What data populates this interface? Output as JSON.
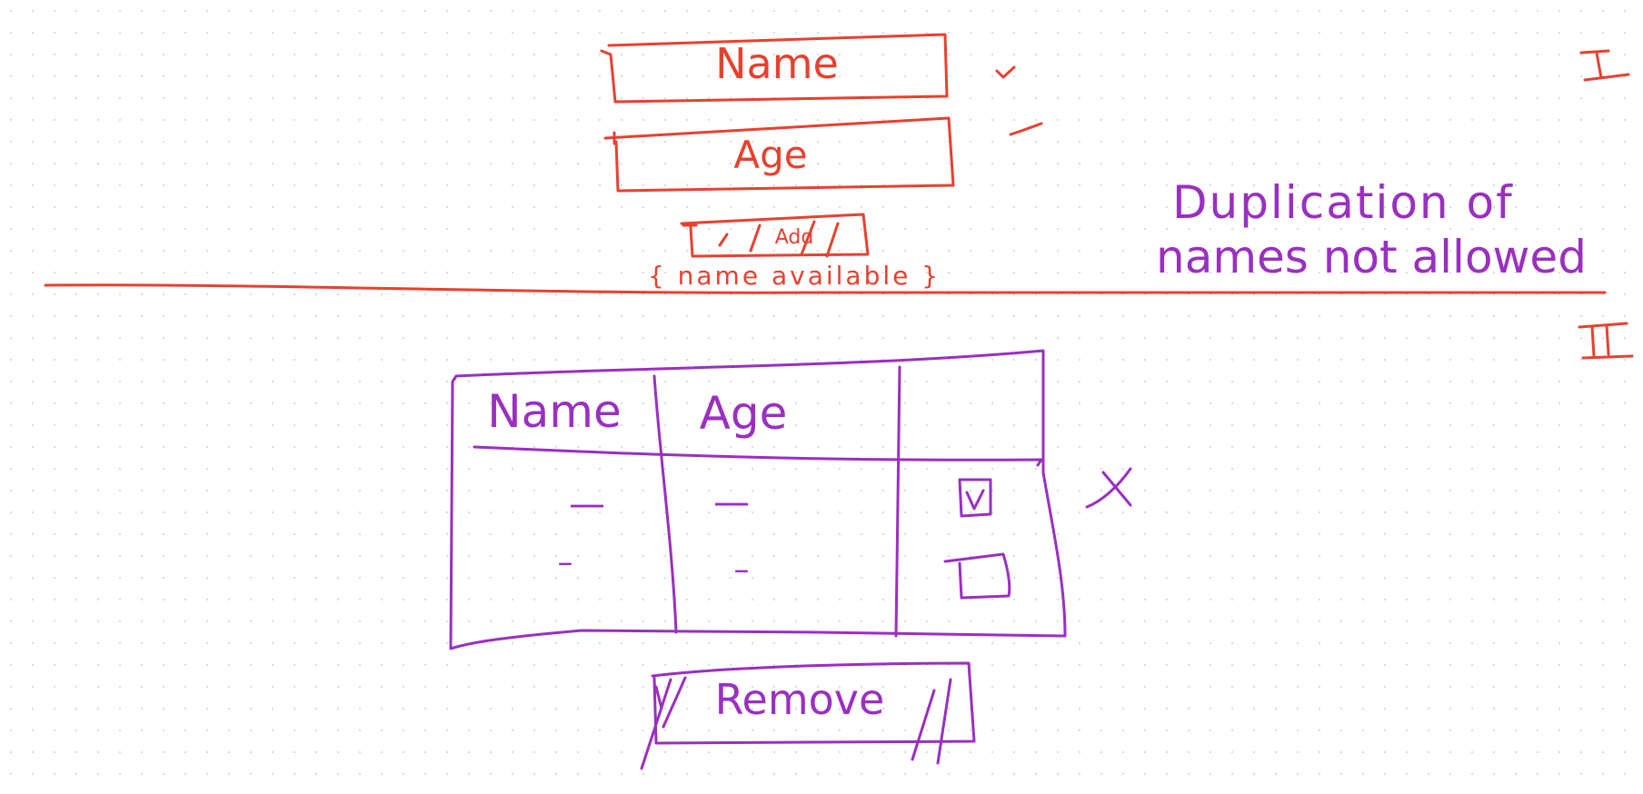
{
  "colors": {
    "section_one": "#e8402f",
    "section_two": "#9a2fc1"
  },
  "section_one": {
    "marker": "I",
    "name_field_label": "Name",
    "age_field_label": "Age",
    "add_button_label": "Add",
    "availability_message": "{ name available }",
    "note": [
      "Duplication of",
      "names not allowed"
    ]
  },
  "section_two": {
    "marker": "II",
    "table": {
      "columns": [
        "Name",
        "Age",
        ""
      ],
      "rows": [
        {
          "name": "—",
          "age": "—",
          "checked": true
        },
        {
          "name": "–",
          "age": "–",
          "checked": false
        }
      ]
    },
    "close_mark": "X",
    "remove_button_label": "Remove"
  }
}
